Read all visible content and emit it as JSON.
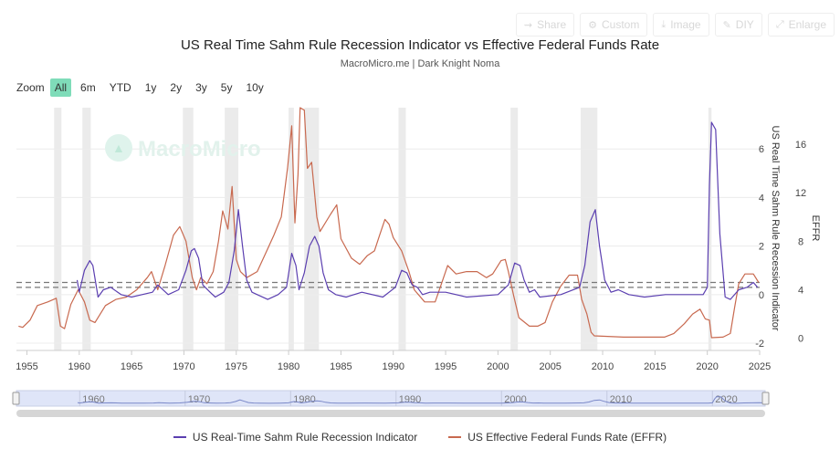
{
  "toolbar": {
    "share_label": "Share",
    "custom_label": "Custom",
    "image_label": "Image",
    "diy_label": "DIY",
    "enlarge_label": "Enlarge",
    "icons": [
      "share-icon",
      "gear-icon",
      "download-icon",
      "pencil-icon",
      "expand-icon"
    ]
  },
  "header": {
    "title": "US Real Time Sahm Rule Recession Indicator vs Effective Federal Funds Rate",
    "subtitle": "MacroMicro.me | Dark Knight Noma"
  },
  "watermark": "MacroMicro",
  "zoom": {
    "label": "Zoom",
    "buttons": [
      "All",
      "6m",
      "YTD",
      "1y",
      "2y",
      "3y",
      "5y",
      "10y"
    ],
    "active": "All"
  },
  "colors": {
    "sahm": "#5b3fb0",
    "effr": "#c8694f",
    "recession": "#ebebeb",
    "active_zoom": "#7fdcb9"
  },
  "chart_data": {
    "type": "line",
    "x_range": [
      1954,
      2025
    ],
    "x_ticks": [
      "1955",
      "1960",
      "1965",
      "1970",
      "1975",
      "1980",
      "1985",
      "1990",
      "1995",
      "2000",
      "2005",
      "2010",
      "2015",
      "2020",
      "2025"
    ],
    "y_left": {
      "label": "US Real Time Sahm Rule Recession Indicator",
      "range": [
        -2.3,
        7.7
      ],
      "ticks": [
        "-2",
        "0",
        "2",
        "4",
        "6"
      ]
    },
    "y_right": {
      "label": "EFFR",
      "range": [
        -1,
        19
      ],
      "ticks": [
        "0",
        "4",
        "8",
        "12",
        "16"
      ]
    },
    "reference_lines": [
      0.5,
      0.3
    ],
    "recessions": [
      [
        1957.6,
        1958.3
      ],
      [
        1960.3,
        1961.1
      ],
      [
        1969.9,
        1970.9
      ],
      [
        1973.9,
        1975.2
      ],
      [
        1980.0,
        1980.5
      ],
      [
        1981.5,
        1982.9
      ],
      [
        1990.5,
        1991.2
      ],
      [
        2001.2,
        2001.9
      ],
      [
        2007.9,
        2009.5
      ],
      [
        2020.1,
        2020.4
      ]
    ],
    "series": [
      {
        "name": "US Real-Time Sahm Rule Recession Indicator",
        "axis": "left",
        "x": [
          1959.8,
          1960.0,
          1960.5,
          1961.0,
          1961.3,
          1961.8,
          1962.3,
          1963.0,
          1964.0,
          1965.0,
          1966.0,
          1967.0,
          1967.5,
          1968.5,
          1969.5,
          1970.2,
          1970.7,
          1971.0,
          1971.4,
          1971.8,
          1972.5,
          1973.0,
          1973.8,
          1974.3,
          1974.8,
          1975.2,
          1975.6,
          1976.0,
          1976.5,
          1977.0,
          1978.0,
          1979.0,
          1979.8,
          1980.3,
          1980.7,
          1981.0,
          1981.5,
          1982.0,
          1982.5,
          1982.9,
          1983.3,
          1983.8,
          1984.5,
          1985.5,
          1987.0,
          1989.0,
          1990.2,
          1990.8,
          1991.3,
          1991.8,
          1992.3,
          1992.8,
          1993.5,
          1995.0,
          1997.0,
          2000.0,
          2001.0,
          2001.6,
          2002.1,
          2002.5,
          2003.0,
          2003.5,
          2004.0,
          2006.0,
          2007.8,
          2008.3,
          2008.8,
          2009.3,
          2009.7,
          2010.2,
          2010.8,
          2011.5,
          2012.5,
          2014.0,
          2016.0,
          2018.0,
          2019.6,
          2020.0,
          2020.2,
          2020.4,
          2020.8,
          2021.2,
          2021.7,
          2022.2,
          2023.0,
          2023.8,
          2024.4,
          2024.8
        ],
        "values": [
          0.6,
          0.1,
          1.0,
          1.4,
          1.2,
          -0.1,
          0.2,
          0.3,
          0.0,
          -0.1,
          0.0,
          0.1,
          0.4,
          0.0,
          0.2,
          1.0,
          1.8,
          1.9,
          1.5,
          0.4,
          0.1,
          -0.1,
          0.1,
          0.5,
          1.8,
          3.5,
          2.0,
          0.6,
          0.1,
          0.0,
          -0.2,
          0.0,
          0.3,
          1.7,
          1.2,
          0.2,
          0.9,
          2.0,
          2.4,
          2.0,
          0.9,
          0.2,
          0.0,
          -0.1,
          0.1,
          -0.1,
          0.3,
          1.0,
          0.9,
          0.4,
          0.3,
          0.0,
          0.1,
          0.1,
          -0.1,
          0.0,
          0.4,
          1.3,
          1.2,
          0.6,
          0.1,
          0.2,
          -0.1,
          0.0,
          0.3,
          1.2,
          3.0,
          3.5,
          2.0,
          0.6,
          0.1,
          0.2,
          0.0,
          -0.1,
          0.0,
          0.0,
          0.0,
          0.3,
          4.5,
          7.1,
          6.8,
          2.5,
          -0.1,
          -0.2,
          0.2,
          0.3,
          0.5,
          0.3
        ]
      },
      {
        "name": "US Effective Federal Funds Rate (EFFR)",
        "axis": "right",
        "x": [
          1954.2,
          1954.6,
          1955.3,
          1956.0,
          1957.0,
          1957.8,
          1958.2,
          1958.6,
          1959.2,
          1959.9,
          1960.5,
          1961.0,
          1961.5,
          1962.5,
          1963.5,
          1964.5,
          1965.5,
          1966.5,
          1966.9,
          1967.5,
          1968.2,
          1969.0,
          1969.6,
          1970.2,
          1970.8,
          1971.2,
          1971.6,
          1972.2,
          1972.8,
          1973.3,
          1973.7,
          1974.2,
          1974.6,
          1975.0,
          1975.4,
          1976.0,
          1977.0,
          1977.8,
          1978.6,
          1979.3,
          1979.9,
          1980.3,
          1980.6,
          1980.9,
          1981.1,
          1981.5,
          1981.8,
          1982.2,
          1982.7,
          1983.0,
          1984.0,
          1984.6,
          1985.0,
          1986.0,
          1986.8,
          1987.5,
          1988.2,
          1988.7,
          1989.2,
          1989.6,
          1990.0,
          1990.8,
          1991.5,
          1992.0,
          1993.0,
          1994.0,
          1994.6,
          1995.2,
          1996.0,
          1997.0,
          1998.0,
          1998.9,
          1999.5,
          2000.3,
          2000.7,
          2001.0,
          2001.5,
          2002.0,
          2003.0,
          2003.8,
          2004.5,
          2005.2,
          2006.0,
          2006.8,
          2007.6,
          2008.0,
          2008.5,
          2008.9,
          2009.2,
          2012.0,
          2015.9,
          2016.8,
          2017.8,
          2018.6,
          2019.3,
          2019.8,
          2020.2,
          2020.4,
          2021.5,
          2022.2,
          2022.6,
          2023.0,
          2023.6,
          2024.4,
          2024.9
        ],
        "values": [
          1.0,
          0.9,
          1.5,
          2.7,
          3.0,
          3.3,
          1.0,
          0.8,
          2.8,
          4.0,
          3.0,
          1.5,
          1.3,
          2.7,
          3.2,
          3.4,
          4.0,
          5.0,
          5.5,
          4.0,
          6.0,
          8.5,
          9.2,
          8.0,
          5.0,
          4.0,
          5.0,
          4.5,
          5.5,
          8.0,
          10.5,
          9.0,
          12.5,
          6.5,
          5.5,
          5.0,
          5.5,
          7.0,
          8.5,
          10.0,
          14.0,
          17.5,
          9.5,
          13.5,
          19.0,
          18.8,
          14.0,
          14.5,
          10.0,
          8.8,
          10.2,
          11.0,
          8.2,
          6.6,
          6.1,
          6.8,
          7.2,
          8.5,
          9.8,
          9.4,
          8.3,
          7.2,
          5.5,
          4.0,
          3.0,
          3.0,
          4.5,
          6.0,
          5.3,
          5.5,
          5.5,
          5.0,
          5.3,
          6.4,
          6.5,
          5.5,
          3.5,
          1.7,
          1.0,
          1.0,
          1.3,
          3.0,
          4.3,
          5.2,
          5.2,
          3.2,
          2.0,
          0.5,
          0.2,
          0.1,
          0.1,
          0.4,
          1.2,
          2.0,
          2.4,
          1.6,
          1.5,
          0.05,
          0.1,
          0.4,
          2.5,
          4.5,
          5.3,
          5.3,
          4.6
        ]
      }
    ]
  },
  "navigator": {
    "ticks": [
      "1960",
      "1970",
      "1980",
      "1990",
      "2000",
      "2010",
      "2020"
    ]
  },
  "legend": {
    "items": [
      "US Real-Time Sahm Rule Recession Indicator",
      "US Effective Federal Funds Rate (EFFR)"
    ]
  }
}
